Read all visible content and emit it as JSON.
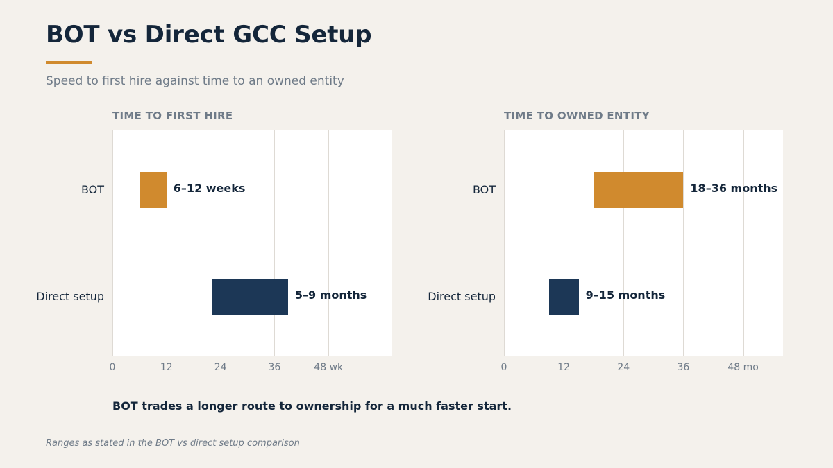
{
  "title": "BOT vs Direct GCC Setup",
  "subtitle": "Speed to first hire against time to an owned entity",
  "takeaway": "BOT trades a longer route to ownership for a much faster start.",
  "source": "Ranges as stated in the BOT vs direct setup comparison",
  "colors": {
    "bot": "#d08a2e",
    "direct": "#1c3756",
    "accent": "#d08a2e"
  },
  "chart_data": [
    {
      "type": "bar",
      "orientation": "horizontal-range",
      "title": "TIME TO FIRST HIRE",
      "categories": [
        "BOT",
        "Direct setup"
      ],
      "ranges": [
        {
          "category": "BOT",
          "start": 6,
          "end": 12,
          "label": "6–12 weeks"
        },
        {
          "category": "Direct setup",
          "start": 22,
          "end": 39,
          "label": "5–9 months"
        }
      ],
      "xticks": [
        0,
        12,
        24,
        36,
        48
      ],
      "xtick_labels": [
        "0",
        "12",
        "24",
        "36",
        "48 wk"
      ],
      "xlim": [
        0,
        62
      ],
      "grid": true
    },
    {
      "type": "bar",
      "orientation": "horizontal-range",
      "title": "TIME TO OWNED ENTITY",
      "categories": [
        "BOT",
        "Direct setup"
      ],
      "ranges": [
        {
          "category": "BOT",
          "start": 18,
          "end": 36,
          "label": "18–36 months"
        },
        {
          "category": "Direct setup",
          "start": 9,
          "end": 15,
          "label": "9–15 months"
        }
      ],
      "xticks": [
        0,
        12,
        24,
        36,
        48
      ],
      "xtick_labels": [
        "0",
        "12",
        "24",
        "36",
        "48 mo"
      ],
      "xlim": [
        0,
        56
      ],
      "grid": true
    }
  ]
}
